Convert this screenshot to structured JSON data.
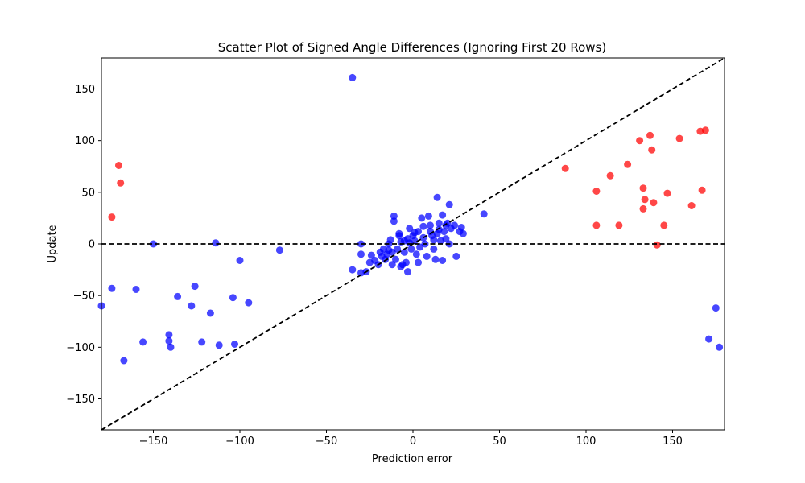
{
  "chart_data": {
    "type": "scatter",
    "title": "Scatter Plot of Signed Angle Differences (Ignoring First 20 Rows)",
    "xlabel": "Prediction error",
    "ylabel": "Update",
    "xlim": [
      -180,
      180
    ],
    "ylim": [
      -180,
      180
    ],
    "xticks": [
      -150,
      -100,
      -50,
      0,
      50,
      100,
      150
    ],
    "yticks": [
      -150,
      -100,
      -50,
      0,
      50,
      100,
      150
    ],
    "xtick_labels": [
      "−150",
      "−100",
      "−50",
      "0",
      "50",
      "100",
      "150"
    ],
    "ytick_labels": [
      "−150",
      "−100",
      "−50",
      "0",
      "50",
      "100",
      "150"
    ],
    "grid": false,
    "reference_lines": [
      {
        "kind": "identity",
        "style": "dashed",
        "color": "#000000"
      },
      {
        "kind": "horizontal",
        "y": 0,
        "style": "dashed",
        "color": "#000000"
      }
    ],
    "series": [
      {
        "color": "#0000ff",
        "points": [
          [
            -35,
            161
          ],
          [
            -180,
            -60
          ],
          [
            -174,
            -43
          ],
          [
            -167,
            -113
          ],
          [
            -160,
            -44
          ],
          [
            -156,
            -95
          ],
          [
            -150,
            0
          ],
          [
            -141,
            -88
          ],
          [
            -141,
            -94
          ],
          [
            -140,
            -100
          ],
          [
            -136,
            -51
          ],
          [
            -128,
            -60
          ],
          [
            -126,
            -41
          ],
          [
            -122,
            -95
          ],
          [
            -117,
            -67
          ],
          [
            -114,
            1
          ],
          [
            -112,
            -98
          ],
          [
            -104,
            -52
          ],
          [
            -103,
            -97
          ],
          [
            -100,
            -16
          ],
          [
            -95,
            -57
          ],
          [
            -77,
            -6
          ],
          [
            175,
            -62
          ],
          [
            171,
            -92
          ],
          [
            177,
            -100
          ],
          [
            41,
            29
          ],
          [
            21,
            38
          ],
          [
            14,
            45
          ],
          [
            -11,
            27
          ],
          [
            -30,
            0
          ],
          [
            -30,
            -10
          ],
          [
            -35,
            -25
          ],
          [
            -30,
            -28
          ],
          [
            -27,
            -27
          ],
          [
            -25,
            -18
          ],
          [
            -22,
            -16
          ],
          [
            -20,
            -20
          ],
          [
            -18,
            -12
          ],
          [
            -17,
            -5
          ],
          [
            -15,
            -10
          ],
          [
            -14,
            0
          ],
          [
            -13,
            4
          ],
          [
            -12,
            -8
          ],
          [
            -10,
            -15
          ],
          [
            -9,
            -5
          ],
          [
            -8,
            10
          ],
          [
            -7,
            2
          ],
          [
            -6,
            -20
          ],
          [
            -5,
            -8
          ],
          [
            -4,
            -18
          ],
          [
            -3,
            5
          ],
          [
            -2,
            15
          ],
          [
            -1,
            -5
          ],
          [
            0,
            8
          ],
          [
            1,
            3
          ],
          [
            2,
            -10
          ],
          [
            3,
            12
          ],
          [
            4,
            -3
          ],
          [
            5,
            25
          ],
          [
            6,
            6
          ],
          [
            7,
            0
          ],
          [
            8,
            -12
          ],
          [
            9,
            27
          ],
          [
            10,
            18
          ],
          [
            11,
            8
          ],
          [
            12,
            -5
          ],
          [
            13,
            -15
          ],
          [
            14,
            10
          ],
          [
            15,
            20
          ],
          [
            16,
            3
          ],
          [
            17,
            -16
          ],
          [
            18,
            12
          ],
          [
            19,
            5
          ],
          [
            20,
            20
          ],
          [
            21,
            0
          ],
          [
            22,
            15
          ],
          [
            24,
            18
          ],
          [
            25,
            -12
          ],
          [
            27,
            12
          ],
          [
            28,
            16
          ],
          [
            29,
            10
          ],
          [
            -3,
            -27
          ],
          [
            -7,
            -22
          ],
          [
            -12,
            -20
          ],
          [
            -16,
            -15
          ],
          [
            -19,
            -8
          ],
          [
            -11,
            22
          ],
          [
            -8,
            8
          ],
          [
            -5,
            3
          ],
          [
            3,
            -18
          ],
          [
            6,
            17
          ],
          [
            10,
            12
          ],
          [
            12,
            4
          ],
          [
            15,
            14
          ],
          [
            17,
            28
          ],
          [
            19,
            18
          ],
          [
            -2,
            1
          ],
          [
            1,
            11
          ],
          [
            -24,
            -11
          ],
          [
            -14,
            -6
          ]
        ]
      },
      {
        "color": "#ff0000",
        "points": [
          [
            -174,
            26
          ],
          [
            -170,
            76
          ],
          [
            -169,
            59
          ],
          [
            88,
            73
          ],
          [
            106,
            51
          ],
          [
            106,
            18
          ],
          [
            114,
            66
          ],
          [
            119,
            18
          ],
          [
            124,
            77
          ],
          [
            131,
            100
          ],
          [
            133,
            54
          ],
          [
            133,
            34
          ],
          [
            134,
            43
          ],
          [
            137,
            105
          ],
          [
            138,
            91
          ],
          [
            139,
            40
          ],
          [
            141,
            -1
          ],
          [
            145,
            18
          ],
          [
            147,
            49
          ],
          [
            154,
            102
          ],
          [
            161,
            37
          ],
          [
            166,
            109
          ],
          [
            167,
            52
          ],
          [
            169,
            110
          ]
        ]
      }
    ]
  }
}
